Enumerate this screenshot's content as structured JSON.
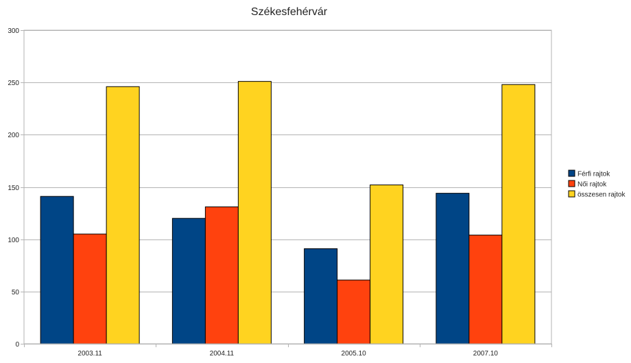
{
  "chart_data": {
    "type": "bar",
    "title": "Székesfehérvár",
    "xlabel": "",
    "ylabel": "",
    "categories": [
      "2003.11",
      "2004.11",
      "2005.10",
      "2007.10"
    ],
    "series": [
      {
        "name": "Férfi rajtok",
        "color": "#004586",
        "values": [
          141,
          120,
          91,
          144
        ]
      },
      {
        "name": "Női rajtok",
        "color": "#ff420e",
        "values": [
          105,
          131,
          61,
          104
        ]
      },
      {
        "name": "összesen rajtok",
        "color": "#ffd320",
        "values": [
          246,
          251,
          152,
          248
        ]
      }
    ],
    "ylim": [
      0,
      300
    ],
    "yticks": [
      0,
      50,
      100,
      150,
      200,
      250,
      300
    ],
    "grid": true,
    "legend": "right"
  }
}
